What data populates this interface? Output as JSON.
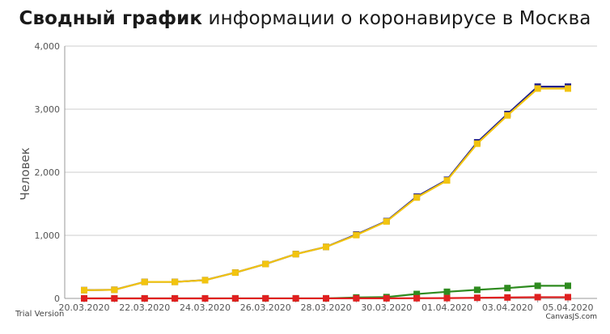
{
  "title": {
    "bold": "Сводный график",
    "rest": "информации о коронавирусе в Москва"
  },
  "watermark": {
    "left": "Trial Version",
    "right": "CanvasJS.com"
  },
  "chart_data": {
    "type": "line",
    "ylabel": "Человек",
    "ylim": [
      0,
      4000
    ],
    "y_ticks": [
      0,
      1000,
      2000,
      3000,
      4000
    ],
    "y_tick_labels": [
      "0",
      "1,000",
      "2,000",
      "3,000",
      "4,000"
    ],
    "x": [
      "20.03.2020",
      "21.03.2020",
      "22.03.2020",
      "23.03.2020",
      "24.03.2020",
      "25.03.2020",
      "26.03.2020",
      "27.03.2020",
      "28.03.2020",
      "29.03.2020",
      "30.03.2020",
      "31.03.2020",
      "01.04.2020",
      "02.04.2020",
      "03.04.2020",
      "04.04.2020",
      "05.04.2020"
    ],
    "x_tick_labels": [
      "20.03.2020",
      "22.03.2020",
      "24.03.2020",
      "26.03.2020",
      "28.03.2020",
      "30.03.2020",
      "01.04.2020",
      "03.04.2020",
      "05.04.2020"
    ],
    "grid": true,
    "legend": "none",
    "series": [
      {
        "color": "#1a1a8c",
        "values": [
          131,
          137,
          262,
          262,
          290,
          410,
          546,
          703,
          817,
          1013,
          1226,
          1613,
          1880,
          2475,
          2923,
          3357,
          3357
        ]
      },
      {
        "color": "#2e8b1f",
        "values": [
          1,
          1,
          1,
          1,
          1,
          1,
          1,
          1,
          1,
          15,
          21,
          70,
          105,
          136,
          164,
          200,
          200
        ]
      },
      {
        "color": "#e02020",
        "values": [
          0,
          0,
          0,
          0,
          0,
          1,
          1,
          1,
          1,
          2,
          2,
          3,
          5,
          10,
          15,
          20,
          20
        ]
      },
      {
        "color": "#f2c40f",
        "values": [
          130,
          136,
          261,
          261,
          289,
          409,
          545,
          702,
          816,
          1004,
          1220,
          1599,
          1870,
          2453,
          2901,
          3327,
          3327
        ]
      }
    ]
  }
}
